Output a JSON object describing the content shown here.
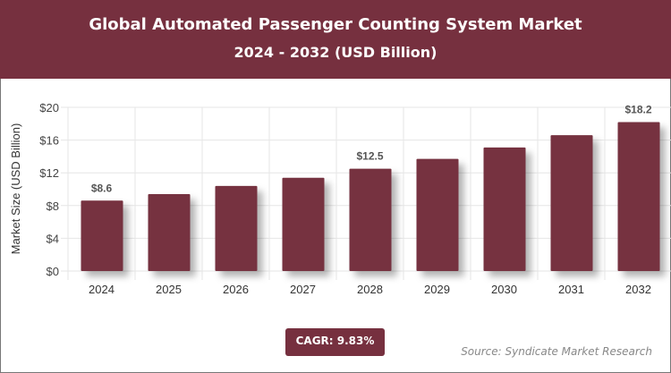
{
  "header": {
    "title": "Global Automated Passenger Counting System Market",
    "subtitle": "2024 - 2032 (USD Billion)"
  },
  "chart_data": {
    "type": "bar",
    "title": "Global Automated Passenger Counting System Market",
    "subtitle": "2024 - 2032 (USD Billion)",
    "ylabel": "Market Size (USD Billion)",
    "xlabel": "",
    "categories": [
      "2024",
      "2025",
      "2026",
      "2027",
      "2028",
      "2029",
      "2030",
      "2031",
      "2032"
    ],
    "values": [
      8.6,
      9.4,
      10.4,
      11.4,
      12.5,
      13.7,
      15.1,
      16.6,
      18.2
    ],
    "data_labels": {
      "0": "$8.6",
      "4": "$12.5",
      "8": "$18.2"
    },
    "ylim": [
      0,
      20
    ],
    "yticks": [
      0,
      4,
      8,
      12,
      16,
      20
    ],
    "ytick_labels": [
      "$0",
      "$4",
      "$8",
      "$12",
      "$16",
      "$20"
    ],
    "grid": true,
    "bar_color": "#76303f"
  },
  "footer": {
    "cagr": "CAGR: 9.83%",
    "source": "Source: Syndicate Market Research"
  }
}
